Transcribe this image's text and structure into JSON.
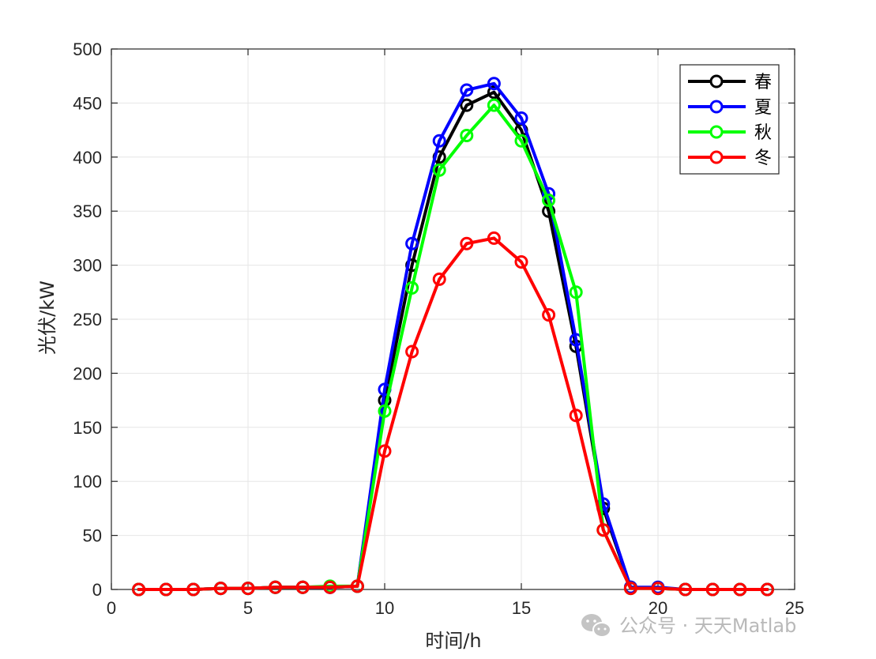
{
  "chart_data": {
    "type": "line",
    "title": "",
    "xlabel": "时间/h",
    "ylabel": "光伏/kW",
    "xlim": [
      0,
      25
    ],
    "ylim": [
      0,
      500
    ],
    "xticks": [
      0,
      5,
      10,
      15,
      20,
      25
    ],
    "yticks": [
      0,
      50,
      100,
      150,
      200,
      250,
      300,
      350,
      400,
      450,
      500
    ],
    "grid": true,
    "legend_position": "top-right",
    "marker": "circle",
    "x": [
      1,
      2,
      3,
      4,
      5,
      6,
      7,
      8,
      9,
      10,
      11,
      12,
      13,
      14,
      15,
      16,
      17,
      18,
      19,
      20,
      21,
      22,
      23,
      24
    ],
    "series": [
      {
        "name": "春",
        "color": "#000000",
        "values": [
          0,
          0,
          0,
          1,
          1,
          2,
          2,
          2,
          3,
          175,
          300,
          400,
          448,
          460,
          425,
          350,
          225,
          75,
          2,
          1,
          0,
          0,
          0,
          0
        ]
      },
      {
        "name": "夏",
        "color": "#0000ff",
        "values": [
          0,
          0,
          0,
          1,
          1,
          2,
          2,
          2,
          3,
          185,
          320,
          415,
          462,
          468,
          436,
          366,
          231,
          79,
          2,
          2,
          0,
          0,
          0,
          0
        ]
      },
      {
        "name": "秋",
        "color": "#00ff00",
        "values": [
          0,
          0,
          0,
          1,
          1,
          2,
          2,
          3,
          3,
          165,
          279,
          388,
          420,
          448,
          415,
          360,
          275,
          55,
          1,
          1,
          0,
          0,
          0,
          0
        ]
      },
      {
        "name": "冬",
        "color": "#ff0000",
        "values": [
          0,
          0,
          0,
          1,
          1,
          2,
          2,
          2,
          3,
          128,
          220,
          287,
          320,
          325,
          303,
          254,
          161,
          55,
          1,
          1,
          0,
          0,
          0,
          0
        ]
      }
    ]
  },
  "watermark": {
    "text": "公众号 · 天天Matlab",
    "icon": "wechat-icon"
  }
}
